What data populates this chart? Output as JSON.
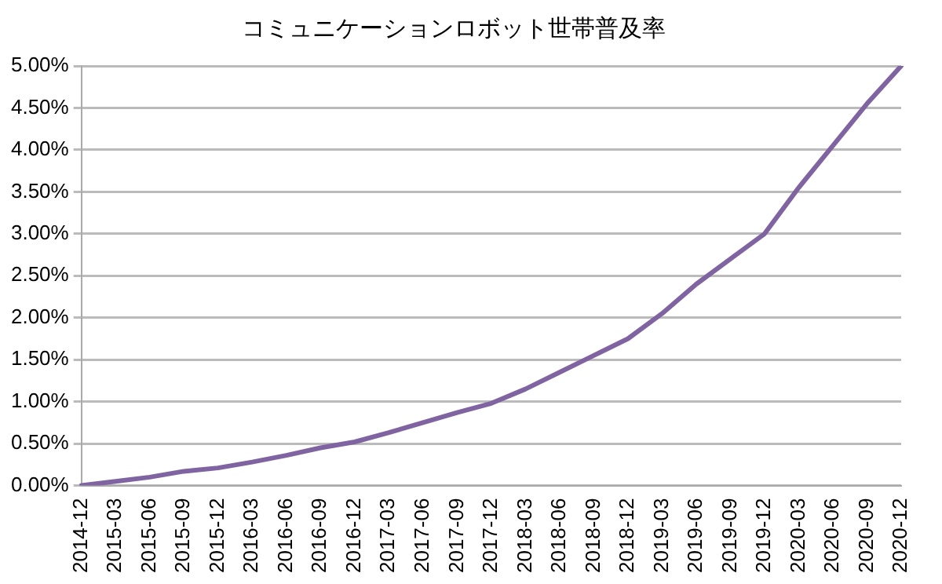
{
  "chart_data": {
    "type": "line",
    "title": "コミュニケーションロボット世帯普及率",
    "categories": [
      "2014-12",
      "2015-03",
      "2015-06",
      "2015-09",
      "2015-12",
      "2016-03",
      "2016-06",
      "2016-09",
      "2016-12",
      "2017-03",
      "2017-06",
      "2017-09",
      "2017-12",
      "2018-03",
      "2018-06",
      "2018-09",
      "2018-12",
      "2019-03",
      "2019-06",
      "2019-09",
      "2019-12",
      "2020-03",
      "2020-06",
      "2020-09",
      "2020-12"
    ],
    "series": [
      {
        "color": "#8064a2",
        "values": [
          0,
          0.05,
          0.1,
          0.17,
          0.21,
          0.28,
          0.36,
          0.45,
          0.52,
          0.63,
          0.75,
          0.87,
          0.98,
          1.15,
          1.35,
          1.55,
          1.75,
          2.05,
          2.4,
          2.7,
          3.0,
          3.55,
          4.05,
          4.55,
          5.0
        ]
      }
    ],
    "ylim": [
      0,
      5
    ],
    "yticks": [
      {
        "value": 0,
        "label": "0.00%"
      },
      {
        "value": 0.5,
        "label": "0.50%"
      },
      {
        "value": 1,
        "label": "1.00%"
      },
      {
        "value": 1.5,
        "label": "1.50%"
      },
      {
        "value": 2,
        "label": "2.00%"
      },
      {
        "value": 2.5,
        "label": "2.50%"
      },
      {
        "value": 3,
        "label": "3.00%"
      },
      {
        "value": 3.5,
        "label": "3.50%"
      },
      {
        "value": 4,
        "label": "4.00%"
      },
      {
        "value": 4.5,
        "label": "4.50%"
      },
      {
        "value": 5,
        "label": "5.00%"
      }
    ],
    "grid": "y",
    "legend": false,
    "marker": "none",
    "line_style": "solid"
  }
}
